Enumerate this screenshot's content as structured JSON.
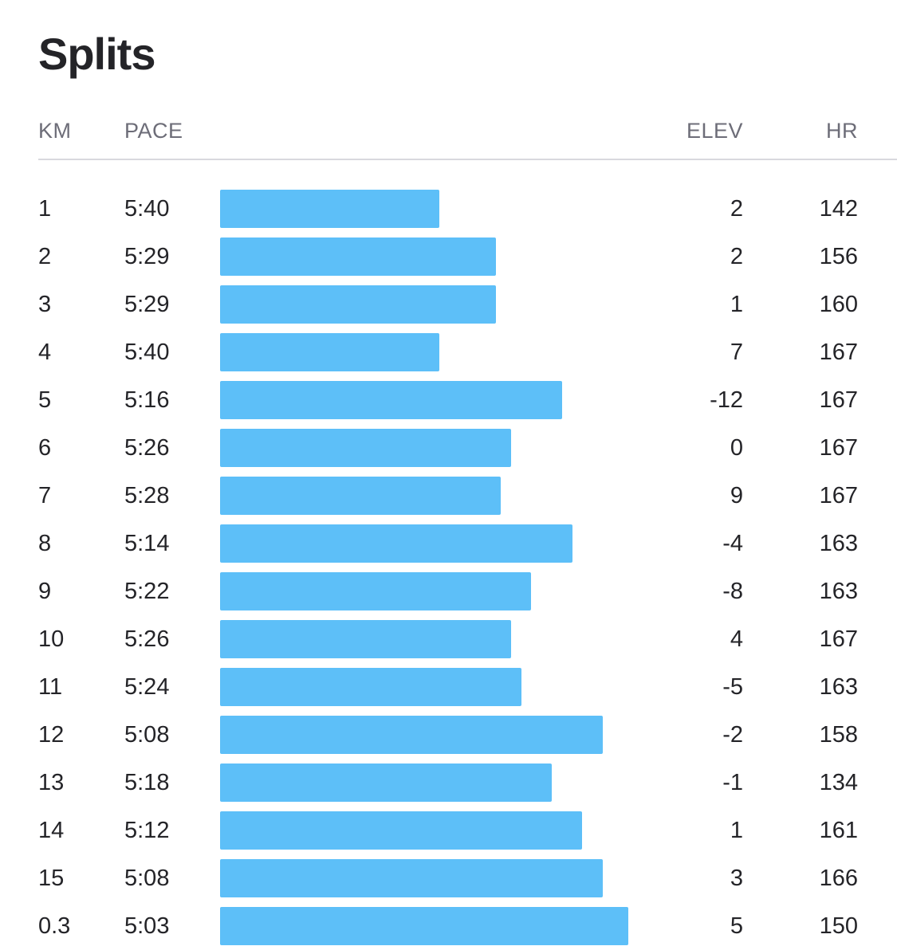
{
  "title": "Splits",
  "headers": {
    "km": "KM",
    "pace": "PACE",
    "elev": "ELEV",
    "hr": "HR"
  },
  "colors": {
    "bar": "#5dbff8",
    "header_text": "#6d6d78",
    "text": "#242428",
    "divider": "#d9d9de"
  },
  "chart_data": {
    "type": "bar",
    "orientation": "horizontal",
    "categories": [
      "1",
      "2",
      "3",
      "4",
      "5",
      "6",
      "7",
      "8",
      "9",
      "10",
      "11",
      "12",
      "13",
      "14",
      "15",
      "0.3"
    ],
    "pace_seconds": [
      340,
      329,
      329,
      340,
      316,
      326,
      328,
      314,
      322,
      326,
      324,
      308,
      318,
      312,
      308,
      303
    ]
  },
  "splits": [
    {
      "km": "1",
      "pace": "5:40",
      "elev": "2",
      "hr": "142"
    },
    {
      "km": "2",
      "pace": "5:29",
      "elev": "2",
      "hr": "156"
    },
    {
      "km": "3",
      "pace": "5:29",
      "elev": "1",
      "hr": "160"
    },
    {
      "km": "4",
      "pace": "5:40",
      "elev": "7",
      "hr": "167"
    },
    {
      "km": "5",
      "pace": "5:16",
      "elev": "-12",
      "hr": "167"
    },
    {
      "km": "6",
      "pace": "5:26",
      "elev": "0",
      "hr": "167"
    },
    {
      "km": "7",
      "pace": "5:28",
      "elev": "9",
      "hr": "167"
    },
    {
      "km": "8",
      "pace": "5:14",
      "elev": "-4",
      "hr": "163"
    },
    {
      "km": "9",
      "pace": "5:22",
      "elev": "-8",
      "hr": "163"
    },
    {
      "km": "10",
      "pace": "5:26",
      "elev": "4",
      "hr": "167"
    },
    {
      "km": "11",
      "pace": "5:24",
      "elev": "-5",
      "hr": "163"
    },
    {
      "km": "12",
      "pace": "5:08",
      "elev": "-2",
      "hr": "158"
    },
    {
      "km": "13",
      "pace": "5:18",
      "elev": "-1",
      "hr": "134"
    },
    {
      "km": "14",
      "pace": "5:12",
      "elev": "1",
      "hr": "161"
    },
    {
      "km": "15",
      "pace": "5:08",
      "elev": "3",
      "hr": "166"
    },
    {
      "km": "0.3",
      "pace": "5:03",
      "elev": "5",
      "hr": "150"
    }
  ]
}
